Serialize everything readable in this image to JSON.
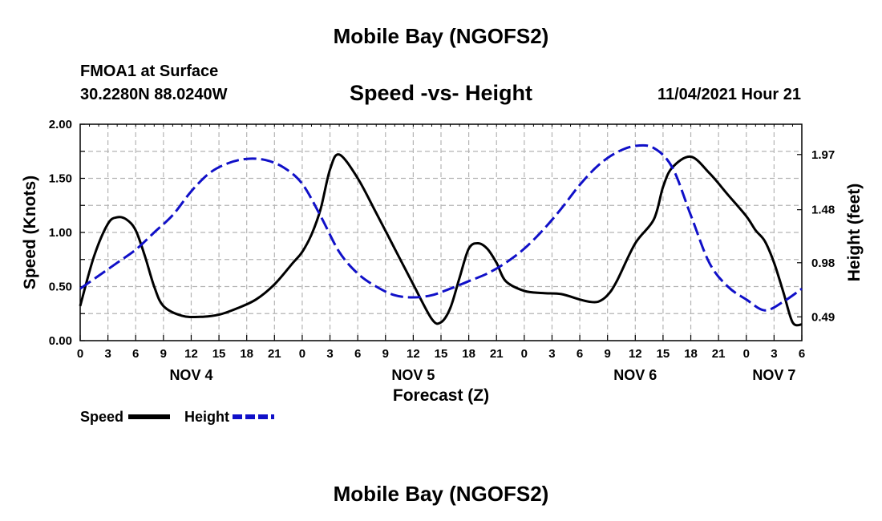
{
  "header": {
    "title": "Mobile Bay (NGOFS2)",
    "station": "FMOA1 at Surface",
    "coords": "30.2280N  88.0240W",
    "chart_title": "Speed -vs- Height",
    "datetime": "11/04/2021 Hour 21",
    "footer_title": "Mobile Bay (NGOFS2)"
  },
  "legend": {
    "speed_label": "Speed",
    "height_label": "Height"
  },
  "colors": {
    "speed": "#000000",
    "height": "#1010c8",
    "grid": "#b4b4b4"
  },
  "chart_data": {
    "type": "line",
    "title": "Speed -vs- Height",
    "xlabel": "Forecast (Z)",
    "ylabel": "Speed (Knots)",
    "y2label": "Height (feet)",
    "xlim": [
      0,
      78
    ],
    "ylim": [
      0,
      2.0
    ],
    "x_tick_labels": [
      "0",
      "3",
      "6",
      "9",
      "12",
      "15",
      "18",
      "21",
      "0",
      "3",
      "6",
      "9",
      "12",
      "15",
      "18",
      "21",
      "0",
      "3",
      "6",
      "9",
      "12",
      "15",
      "18",
      "21",
      "0",
      "3",
      "6"
    ],
    "day_labels": [
      {
        "label": "NOV 4",
        "hour": 12
      },
      {
        "label": "NOV 5",
        "hour": 36
      },
      {
        "label": "NOV 6",
        "hour": 60
      },
      {
        "label": "NOV 7",
        "hour": 75
      }
    ],
    "y_ticks": [
      "0.00",
      "0.50",
      "1.00",
      "1.50",
      "2.00"
    ],
    "y2_ticks": [
      {
        "label": "0.49",
        "speed_equiv": 0.22
      },
      {
        "label": "0.98",
        "speed_equiv": 0.72
      },
      {
        "label": "1.48",
        "speed_equiv": 1.21
      },
      {
        "label": "1.97",
        "speed_equiv": 1.72
      }
    ],
    "grid": true,
    "series": [
      {
        "name": "Speed",
        "style": "solid",
        "x": [
          0,
          1.5,
          3,
          4,
          5,
          6,
          7,
          8,
          9,
          11,
          13,
          15,
          17,
          19,
          21,
          23,
          24,
          25,
          26,
          27,
          28,
          30,
          32,
          34,
          36,
          38,
          39,
          40,
          41,
          42,
          43,
          44,
          45,
          46,
          48,
          50,
          52,
          54,
          55,
          56,
          57,
          58,
          60,
          62,
          63,
          64,
          66,
          68,
          70,
          72,
          73,
          74,
          75,
          76,
          77,
          78
        ],
        "values": [
          0.32,
          0.78,
          1.08,
          1.14,
          1.12,
          1.02,
          0.78,
          0.5,
          0.32,
          0.23,
          0.22,
          0.24,
          0.3,
          0.38,
          0.52,
          0.72,
          0.82,
          0.98,
          1.22,
          1.58,
          1.72,
          1.5,
          1.18,
          0.85,
          0.52,
          0.2,
          0.17,
          0.3,
          0.58,
          0.85,
          0.9,
          0.85,
          0.72,
          0.55,
          0.46,
          0.44,
          0.43,
          0.38,
          0.36,
          0.36,
          0.42,
          0.55,
          0.9,
          1.12,
          1.42,
          1.6,
          1.7,
          1.55,
          1.35,
          1.15,
          1.02,
          0.92,
          0.72,
          0.45,
          0.17,
          0.15
        ]
      },
      {
        "name": "Height",
        "style": "dashed",
        "x": [
          0,
          2,
          4,
          6,
          8,
          10,
          12,
          14,
          16,
          18,
          20,
          22,
          24,
          26,
          28,
          30,
          32,
          34,
          36,
          38,
          40,
          42,
          44,
          46,
          48,
          50,
          52,
          54,
          56,
          58,
          60,
          62,
          64,
          66,
          68,
          70,
          72,
          74,
          76,
          78
        ],
        "values": [
          0.48,
          0.6,
          0.72,
          0.84,
          1.0,
          1.16,
          1.38,
          1.55,
          1.64,
          1.68,
          1.67,
          1.6,
          1.45,
          1.15,
          0.82,
          0.62,
          0.5,
          0.42,
          0.4,
          0.42,
          0.48,
          0.55,
          0.62,
          0.72,
          0.85,
          1.02,
          1.22,
          1.44,
          1.62,
          1.74,
          1.8,
          1.78,
          1.6,
          1.16,
          0.72,
          0.5,
          0.38,
          0.28,
          0.36,
          0.48
        ]
      }
    ]
  }
}
